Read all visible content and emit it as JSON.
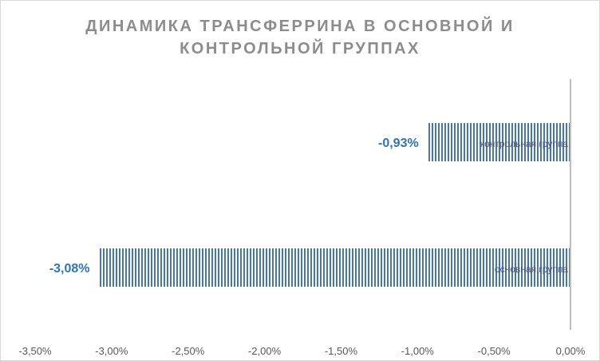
{
  "chart_data": {
    "type": "bar",
    "orientation": "horizontal",
    "title": "ДИНАМИКА ТРАНСФЕРРИНА В ОСНОВНОЙ И КОНТРОЛЬНОЙ ГРУППАХ",
    "categories": [
      "контрольная группа",
      "основная группа"
    ],
    "values": [
      -0.93,
      -3.08
    ],
    "data_labels": [
      "-0,93%",
      "-3,08%"
    ],
    "x_ticks": [
      -3.5,
      -3.0,
      -2.5,
      -2.0,
      -1.5,
      -1.0,
      -0.5,
      0.0
    ],
    "x_tick_labels": [
      "-3,50%",
      "-3,00%",
      "-2,50%",
      "-2,00%",
      "-1,50%",
      "-1,00%",
      "-0,50%",
      "0,00%"
    ],
    "xlim": [
      -3.5,
      0.0
    ],
    "xlabel": "",
    "ylabel": "",
    "grid": false,
    "legend": "none",
    "bar_color": "#4472c4",
    "bar_pattern": "vertical-stripes",
    "label_color": "#2e75b6"
  }
}
